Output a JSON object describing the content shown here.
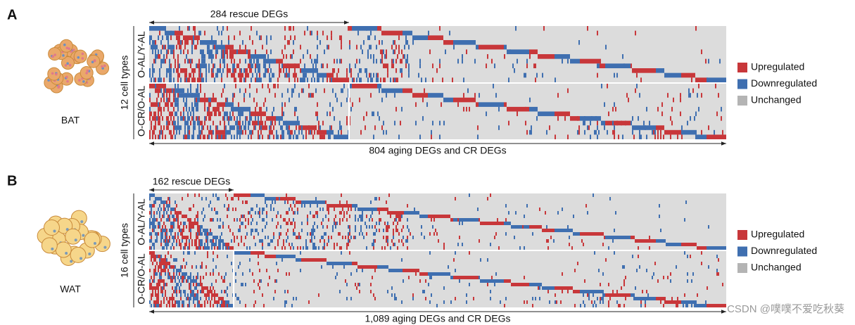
{
  "panels": [
    {
      "letter": "A",
      "tissue": "BAT",
      "y_label": "12 cell types",
      "row_groups": [
        "O-AL/Y-AL",
        "O-CR/O-AL"
      ],
      "top_bracket": "284 rescue DEGs",
      "bottom_bracket": "804 aging DEGs and CR DEGs",
      "legend": [
        "Upregulated",
        "Downregulated",
        "Unchanged"
      ]
    },
    {
      "letter": "B",
      "tissue": "WAT",
      "y_label": "16 cell types",
      "row_groups": [
        "O-AL/Y-AL",
        "O-CR/O-AL"
      ],
      "top_bracket": "162 rescue DEGs",
      "bottom_bracket": "1,089 aging DEGs and CR DEGs",
      "legend": [
        "Upregulated",
        "Downregulated",
        "Unchanged"
      ]
    }
  ],
  "watermark": "CSDN @噗噗不爱吃秋葵"
}
